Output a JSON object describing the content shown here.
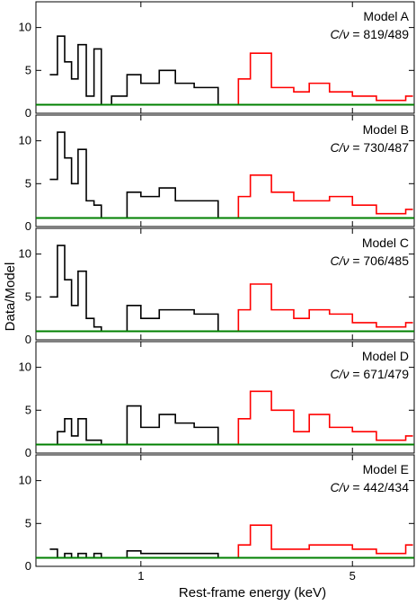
{
  "chart_data": [
    {
      "type": "line",
      "panel_label": "Model A",
      "stat_symbol": "C/ν",
      "stat_value": "819/489",
      "yticks": [
        "0",
        "5",
        "10"
      ],
      "series": [
        {
          "color": "#000000",
          "x": [
            0.5,
            0.53,
            0.56,
            0.59,
            0.62,
            0.66,
            0.7,
            0.74,
            0.8,
            0.9,
            1.0,
            1.15,
            1.3,
            1.5,
            1.8
          ],
          "y": [
            4.5,
            9,
            6,
            4,
            8,
            2,
            7.5,
            1,
            2,
            4.5,
            3.5,
            5,
            3.5,
            3,
            1
          ]
        },
        {
          "color": "#ff0000",
          "x": [
            1.9,
            2.1,
            2.3,
            2.7,
            3.2,
            3.6,
            4.2,
            5.0,
            6.0,
            7.5
          ],
          "y": [
            1,
            4,
            7,
            3,
            2.5,
            3.5,
            2.5,
            2,
            1.5,
            2
          ]
        }
      ],
      "model": {
        "color": "#008000",
        "value": 1
      }
    },
    {
      "type": "line",
      "panel_label": "Model B",
      "stat_symbol": "C/ν",
      "stat_value": "730/487",
      "yticks": [
        "0",
        "5",
        "10"
      ],
      "series": [
        {
          "color": "#000000",
          "x": [
            0.5,
            0.53,
            0.56,
            0.59,
            0.62,
            0.66,
            0.7,
            0.74,
            0.8,
            0.9,
            1.0,
            1.15,
            1.3,
            1.5,
            1.8
          ],
          "y": [
            5.5,
            11,
            8,
            5,
            9,
            3,
            2.5,
            1,
            1,
            4,
            3.5,
            4.5,
            3,
            3,
            1
          ]
        },
        {
          "color": "#ff0000",
          "x": [
            1.9,
            2.1,
            2.3,
            2.7,
            3.2,
            3.6,
            4.2,
            5.0,
            6.0,
            7.5
          ],
          "y": [
            1,
            3.5,
            6,
            4,
            3,
            3,
            3.5,
            2.5,
            1.5,
            2
          ]
        }
      ],
      "model": {
        "color": "#008000",
        "value": 1
      }
    },
    {
      "type": "line",
      "panel_label": "Model C",
      "stat_symbol": "C/ν",
      "stat_value": "706/485",
      "yticks": [
        "0",
        "5",
        "10"
      ],
      "series": [
        {
          "color": "#000000",
          "x": [
            0.5,
            0.53,
            0.56,
            0.59,
            0.62,
            0.66,
            0.7,
            0.74,
            0.8,
            0.9,
            1.0,
            1.15,
            1.3,
            1.5,
            1.8
          ],
          "y": [
            5,
            11,
            7,
            4,
            8,
            2.5,
            1.5,
            1,
            1,
            4,
            2.5,
            3.5,
            3.5,
            3,
            1
          ]
        },
        {
          "color": "#ff0000",
          "x": [
            1.9,
            2.1,
            2.3,
            2.7,
            3.2,
            3.6,
            4.2,
            5.0,
            6.0,
            7.5
          ],
          "y": [
            1,
            3.5,
            6.5,
            3.5,
            2.5,
            3.5,
            3,
            2,
            1.5,
            2
          ]
        }
      ],
      "model": {
        "color": "#008000",
        "value": 1
      }
    },
    {
      "type": "line",
      "panel_label": "Model D",
      "stat_symbol": "C/ν",
      "stat_value": "671/479",
      "yticks": [
        "0",
        "5",
        "10"
      ],
      "series": [
        {
          "color": "#000000",
          "x": [
            0.5,
            0.53,
            0.56,
            0.59,
            0.62,
            0.66,
            0.7,
            0.74,
            0.8,
            0.9,
            1.0,
            1.15,
            1.3,
            1.5,
            1.8
          ],
          "y": [
            1,
            2.5,
            4,
            2,
            4,
            1.5,
            1.5,
            1,
            1,
            5.5,
            3,
            4.5,
            3.5,
            3,
            1
          ]
        },
        {
          "color": "#ff0000",
          "x": [
            1.9,
            2.1,
            2.3,
            2.7,
            3.2,
            3.6,
            4.2,
            5.0,
            6.0,
            7.5
          ],
          "y": [
            1,
            4,
            7.2,
            5,
            2.5,
            4.5,
            3,
            2.5,
            1.5,
            2
          ]
        }
      ],
      "model": {
        "color": "#008000",
        "value": 1
      }
    },
    {
      "type": "line",
      "panel_label": "Model E",
      "stat_symbol": "C/ν",
      "stat_value": "442/434",
      "yticks": [
        "0",
        "5",
        "10"
      ],
      "series": [
        {
          "color": "#000000",
          "x": [
            0.5,
            0.53,
            0.56,
            0.59,
            0.62,
            0.66,
            0.7,
            0.74,
            0.8,
            0.9,
            1.0,
            1.15,
            1.3,
            1.5,
            1.8
          ],
          "y": [
            2,
            1,
            1.5,
            1,
            1.5,
            1,
            1.5,
            1,
            1,
            1.8,
            1.5,
            1.5,
            1.5,
            1.5,
            1
          ]
        },
        {
          "color": "#ff0000",
          "x": [
            1.9,
            2.1,
            2.3,
            2.7,
            3.2,
            3.6,
            4.2,
            5.0,
            6.0,
            7.5
          ],
          "y": [
            1,
            2.5,
            4.8,
            2,
            2,
            2.5,
            2.5,
            2,
            1.5,
            2.5
          ]
        }
      ],
      "model": {
        "color": "#008000",
        "value": 1
      }
    }
  ],
  "shared": {
    "xlabel": "Rest-frame energy (keV)",
    "ylabel": "Data/Model",
    "xticks": [
      "1",
      "5"
    ],
    "xlim": [
      0.45,
      8.0
    ],
    "ylim": [
      0,
      13
    ]
  }
}
